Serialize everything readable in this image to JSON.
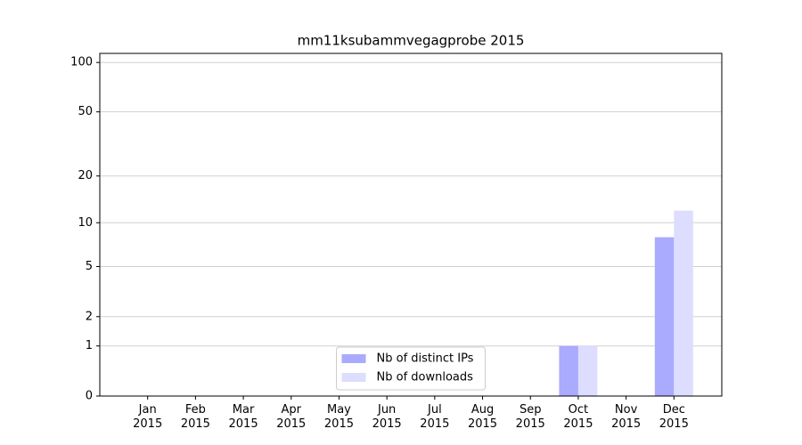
{
  "chart_data": {
    "type": "bar",
    "title": "mm11ksubammvegagprobe 2015",
    "categories": [
      "Jan 2015",
      "Feb 2015",
      "Mar 2015",
      "Apr 2015",
      "May 2015",
      "Jun 2015",
      "Jul 2015",
      "Aug 2015",
      "Sep 2015",
      "Oct 2015",
      "Nov 2015",
      "Dec 2015"
    ],
    "series": [
      {
        "name": "Nb of distinct IPs",
        "color": "#aaaaff",
        "values": [
          0,
          0,
          0,
          0,
          0,
          0,
          0,
          0,
          0,
          1,
          0,
          8
        ]
      },
      {
        "name": "Nb of downloads",
        "color": "#ddddff",
        "values": [
          0,
          0,
          0,
          0,
          0,
          0,
          0,
          0,
          0,
          1,
          0,
          12
        ]
      }
    ],
    "yscale": "log1p",
    "ylim": [
      0,
      113.5
    ],
    "yticks": [
      0,
      1,
      2,
      5,
      10,
      20,
      50,
      100
    ],
    "grid": true,
    "legend": "lower center"
  }
}
